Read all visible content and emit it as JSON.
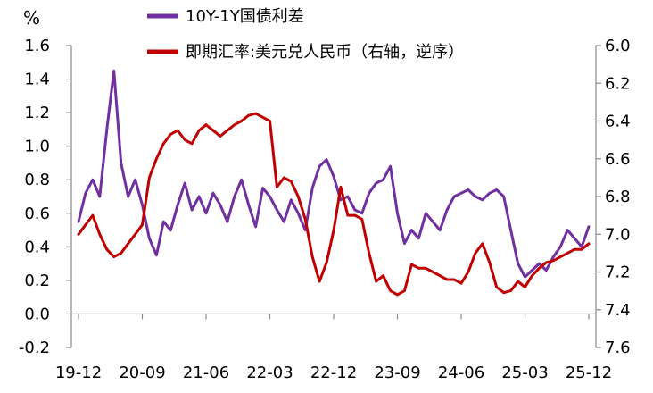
{
  "chart_data": {
    "type": "line",
    "ylabel": "%",
    "legend": "top-center",
    "grid": false,
    "left_axis": {
      "min": -0.2,
      "max": 1.6,
      "step": 0.2,
      "ticks": [
        "-0.2",
        "0.0",
        "0.2",
        "0.4",
        "0.6",
        "0.8",
        "1.0",
        "1.2",
        "1.4",
        "1.6"
      ]
    },
    "right_axis": {
      "min": 6.0,
      "max": 7.6,
      "step": 0.2,
      "inverted": true,
      "ticks": [
        "6.0",
        "6.2",
        "6.4",
        "6.6",
        "6.8",
        "7.0",
        "7.2",
        "7.4",
        "7.6"
      ]
    },
    "x_ticks": [
      "19-12",
      "20-09",
      "21-06",
      "22-03",
      "22-12",
      "23-09",
      "24-06",
      "25-03",
      "25-12"
    ],
    "x": [
      "19-12",
      "20-01",
      "20-02",
      "20-03",
      "20-04",
      "20-05",
      "20-06",
      "20-07",
      "20-08",
      "20-09",
      "20-10",
      "20-11",
      "20-12",
      "21-01",
      "21-02",
      "21-03",
      "21-04",
      "21-05",
      "21-06",
      "21-07",
      "21-08",
      "21-09",
      "21-10",
      "21-11",
      "21-12",
      "22-01",
      "22-02",
      "22-03",
      "22-04",
      "22-05",
      "22-06",
      "22-07",
      "22-08",
      "22-09",
      "22-10",
      "22-11",
      "22-12",
      "23-01",
      "23-02",
      "23-03",
      "23-04",
      "23-05",
      "23-06",
      "23-07",
      "23-08",
      "23-09",
      "23-10",
      "23-11",
      "23-12",
      "24-01",
      "24-02",
      "24-03",
      "24-04",
      "24-05",
      "24-06",
      "24-07",
      "24-08",
      "24-09",
      "24-10",
      "24-11",
      "24-12",
      "25-01",
      "25-02",
      "25-03",
      "25-04",
      "25-05",
      "25-06",
      "25-07",
      "25-08",
      "25-09",
      "25-10",
      "25-11",
      "25-12"
    ],
    "series": [
      {
        "name": "10Y-1Y国债利差",
        "axis": "left",
        "color": "#7030A0",
        "values": [
          0.55,
          0.72,
          0.8,
          0.7,
          1.1,
          1.45,
          0.9,
          0.7,
          0.8,
          0.65,
          0.45,
          0.35,
          0.55,
          0.5,
          0.65,
          0.78,
          0.62,
          0.7,
          0.6,
          0.72,
          0.65,
          0.55,
          0.7,
          0.8,
          0.65,
          0.52,
          0.75,
          0.7,
          0.62,
          0.55,
          0.68,
          0.6,
          0.5,
          0.75,
          0.88,
          0.92,
          0.82,
          0.68,
          0.7,
          0.62,
          0.6,
          0.72,
          0.78,
          0.8,
          0.88,
          0.6,
          0.42,
          0.5,
          0.45,
          0.6,
          0.55,
          0.5,
          0.62,
          0.7,
          0.72,
          0.74,
          0.7,
          0.68,
          0.72,
          0.74,
          0.7,
          0.5,
          0.3,
          0.22,
          0.26,
          0.3,
          0.26,
          0.34,
          0.4,
          0.5,
          0.45,
          0.4,
          0.52
        ]
      },
      {
        "name": "即期汇率:美元兑人民币（右轴，逆序）",
        "axis": "right",
        "color": "#C00000",
        "values": [
          7.0,
          6.95,
          6.9,
          7.0,
          7.08,
          7.12,
          7.1,
          7.05,
          7.0,
          6.95,
          6.7,
          6.6,
          6.52,
          6.47,
          6.45,
          6.5,
          6.52,
          6.45,
          6.42,
          6.45,
          6.48,
          6.45,
          6.42,
          6.4,
          6.37,
          6.36,
          6.38,
          6.4,
          6.75,
          6.7,
          6.72,
          6.8,
          6.92,
          7.12,
          7.25,
          7.15,
          6.98,
          6.75,
          6.9,
          6.9,
          6.92,
          7.1,
          7.25,
          7.22,
          7.3,
          7.32,
          7.3,
          7.16,
          7.18,
          7.18,
          7.2,
          7.22,
          7.24,
          7.24,
          7.26,
          7.2,
          7.1,
          7.05,
          7.15,
          7.28,
          7.31,
          7.3,
          7.25,
          7.28,
          7.22,
          7.18,
          7.15,
          7.14,
          7.12,
          7.1,
          7.08,
          7.08,
          7.05
        ]
      }
    ]
  }
}
